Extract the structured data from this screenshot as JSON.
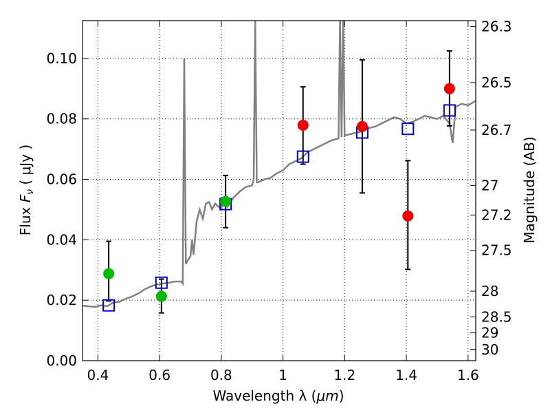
{
  "chart_data": {
    "type": "scatter",
    "title": "",
    "xlabel_text": "Wavelength  λ (",
    "xlabel_unit": "μm",
    "xlabel_close": ")",
    "ylabel_text": "Flux  ",
    "ylabel_math": "F",
    "ylabel_sub": "ν",
    "ylabel_unit": "  ( μJy )",
    "y2label": "Magnitude (AB)",
    "xlim": [
      0.35,
      1.625
    ],
    "ylim": [
      0.0,
      0.1125
    ],
    "grid": true,
    "x_ticks": [
      0.4,
      0.6,
      0.8,
      1.0,
      1.2,
      1.4,
      1.6
    ],
    "x_tick_labels": [
      "0.4",
      "0.6",
      "0.8",
      "1",
      "1.2",
      "1.4",
      "1.6"
    ],
    "y_ticks": [
      0.0,
      0.02,
      0.04,
      0.06,
      0.08,
      0.1
    ],
    "y_tick_labels": [
      "0.00",
      "0.02",
      "0.04",
      "0.06",
      "0.08",
      "0.10"
    ],
    "y2_ticks": [
      {
        "label": "26.3",
        "flux": 0.1106
      },
      {
        "label": "26.5",
        "flux": 0.092
      },
      {
        "label": "26.7",
        "flux": 0.0763
      },
      {
        "label": "27",
        "flux": 0.058
      },
      {
        "label": "27.2",
        "flux": 0.0482
      },
      {
        "label": "27.5",
        "flux": 0.0365
      },
      {
        "label": "28",
        "flux": 0.023
      },
      {
        "label": "28.5",
        "flux": 0.0145
      },
      {
        "label": "29",
        "flux": 0.0092
      },
      {
        "label": "30",
        "flux": 0.0037
      }
    ],
    "model_spectrum": {
      "name": "",
      "color": "#808080",
      "points": [
        [
          0.35,
          0.0182
        ],
        [
          0.37,
          0.018
        ],
        [
          0.39,
          0.0178
        ],
        [
          0.41,
          0.0183
        ],
        [
          0.43,
          0.018
        ],
        [
          0.45,
          0.0193
        ],
        [
          0.47,
          0.0195
        ],
        [
          0.49,
          0.0205
        ],
        [
          0.51,
          0.0212
        ],
        [
          0.53,
          0.0222
        ],
        [
          0.55,
          0.0235
        ],
        [
          0.57,
          0.0245
        ],
        [
          0.59,
          0.0252
        ],
        [
          0.61,
          0.0255
        ],
        [
          0.63,
          0.0258
        ],
        [
          0.65,
          0.0262
        ],
        [
          0.67,
          0.0262
        ],
        [
          0.675,
          0.0255
        ],
        [
          0.68,
          0.1
        ],
        [
          0.685,
          0.032
        ],
        [
          0.69,
          0.033
        ],
        [
          0.7,
          0.0345
        ],
        [
          0.705,
          0.04
        ],
        [
          0.71,
          0.035
        ],
        [
          0.72,
          0.046
        ],
        [
          0.73,
          0.05
        ],
        [
          0.74,
          0.047
        ],
        [
          0.75,
          0.052
        ],
        [
          0.76,
          0.0525
        ],
        [
          0.77,
          0.05
        ],
        [
          0.78,
          0.052
        ],
        [
          0.79,
          0.051
        ],
        [
          0.8,
          0.0505
        ],
        [
          0.81,
          0.053
        ],
        [
          0.82,
          0.051
        ],
        [
          0.84,
          0.054
        ],
        [
          0.86,
          0.056
        ],
        [
          0.88,
          0.0575
        ],
        [
          0.9,
          0.058
        ],
        [
          0.905,
          0.06
        ],
        [
          0.91,
          0.1125
        ],
        [
          0.915,
          0.059
        ],
        [
          0.92,
          0.059
        ],
        [
          0.94,
          0.06
        ],
        [
          0.96,
          0.0605
        ],
        [
          0.98,
          0.062
        ],
        [
          1.0,
          0.063
        ],
        [
          1.02,
          0.065
        ],
        [
          1.04,
          0.066
        ],
        [
          1.06,
          0.067
        ],
        [
          1.08,
          0.069
        ],
        [
          1.1,
          0.07
        ],
        [
          1.12,
          0.071
        ],
        [
          1.14,
          0.072
        ],
        [
          1.16,
          0.073
        ],
        [
          1.18,
          0.0735
        ],
        [
          1.185,
          0.1125
        ],
        [
          1.19,
          0.074
        ],
        [
          1.195,
          0.1125
        ],
        [
          1.2,
          0.0745
        ],
        [
          1.22,
          0.075
        ],
        [
          1.24,
          0.0755
        ],
        [
          1.26,
          0.076
        ],
        [
          1.28,
          0.077
        ],
        [
          1.3,
          0.0775
        ],
        [
          1.32,
          0.0785
        ],
        [
          1.34,
          0.0795
        ],
        [
          1.36,
          0.0805
        ],
        [
          1.38,
          0.08
        ],
        [
          1.4,
          0.0785
        ],
        [
          1.42,
          0.079
        ],
        [
          1.44,
          0.08
        ],
        [
          1.46,
          0.081
        ],
        [
          1.48,
          0.0805
        ],
        [
          1.5,
          0.08
        ],
        [
          1.52,
          0.081
        ],
        [
          1.54,
          0.0785
        ],
        [
          1.55,
          0.072
        ],
        [
          1.56,
          0.084
        ],
        [
          1.58,
          0.085
        ],
        [
          1.6,
          0.0845
        ],
        [
          1.625,
          0.086
        ]
      ]
    },
    "model_photometry": {
      "name": "",
      "color": "#0000cc",
      "points": [
        [
          0.435,
          0.0183
        ],
        [
          0.606,
          0.0258
        ],
        [
          0.814,
          0.0518
        ],
        [
          1.065,
          0.0675
        ],
        [
          1.257,
          0.0755
        ],
        [
          1.405,
          0.0767
        ],
        [
          1.54,
          0.0828
        ]
      ]
    },
    "observed_green": {
      "name": "",
      "color": "#00bb00",
      "points": [
        {
          "x": 0.435,
          "y": 0.0288,
          "err_low": 0.0198,
          "err_high": 0.0395
        },
        {
          "x": 0.606,
          "y": 0.0213,
          "err_low": 0.0158,
          "err_high": 0.027
        },
        {
          "x": 0.814,
          "y": 0.0527,
          "err_low": 0.044,
          "err_high": 0.0613
        }
      ]
    },
    "observed_red": {
      "name": "",
      "color": "#ee0000",
      "points": [
        {
          "x": 1.065,
          "y": 0.0779,
          "err_low": 0.065,
          "err_high": 0.0906
        },
        {
          "x": 1.257,
          "y": 0.0775,
          "err_low": 0.0555,
          "err_high": 0.0995
        },
        {
          "x": 1.405,
          "y": 0.0479,
          "err_low": 0.0302,
          "err_high": 0.0662
        },
        {
          "x": 1.54,
          "y": 0.09,
          "err_low": 0.0777,
          "err_high": 0.1025
        }
      ]
    }
  }
}
